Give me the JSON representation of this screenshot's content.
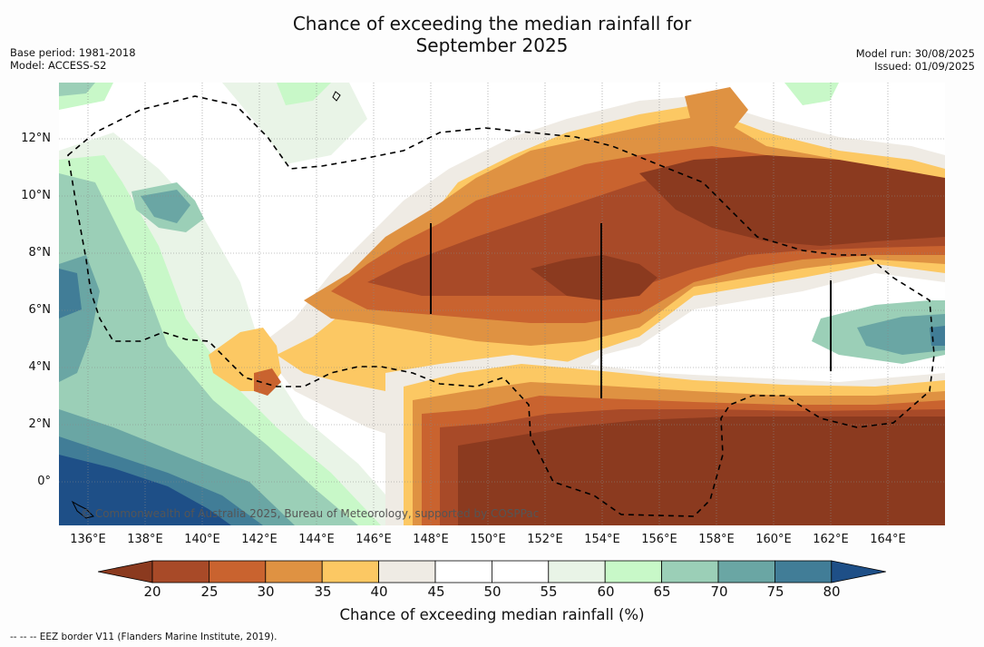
{
  "title_line1": "Chance of exceeding the median rainfall for",
  "title_line2": "September 2025",
  "meta_left": {
    "base_period": "Base period: 1981-2018",
    "model": "Model: ACCESS-S2"
  },
  "meta_right": {
    "model_run": "Model run: 30/08/2025",
    "issued": "Issued: 01/09/2025"
  },
  "map": {
    "lat_labels": [
      "12°N",
      "10°N",
      "8°N",
      "6°N",
      "4°N",
      "2°N",
      "0°"
    ],
    "lon_labels": [
      "136°E",
      "138°E",
      "140°E",
      "142°E",
      "144°E",
      "146°E",
      "148°E",
      "150°E",
      "152°E",
      "154°E",
      "156°E",
      "158°E",
      "160°E",
      "162°E",
      "164°E"
    ],
    "copyright": "© Commonwealth of Australia 2025, Bureau of Meteorology, supported by COSPPac",
    "legend_line": "EEZ border V11 (Flanders Marine Institute, 2019)."
  },
  "colorbar": {
    "ticks": [
      "20",
      "25",
      "30",
      "35",
      "40",
      "45",
      "50",
      "55",
      "60",
      "65",
      "70",
      "75",
      "80"
    ],
    "label": "Chance of exceeding median rainfall (%)",
    "colors": [
      "#8b3a1f",
      "#a84a28",
      "#c9632f",
      "#df9242",
      "#fcc863",
      "#efebe4",
      "#ffffff",
      "#ffffff",
      "#e9f4e7",
      "#c8f8c8",
      "#9bcfb7",
      "#6aa6a4",
      "#417d97",
      "#1e4f87"
    ]
  },
  "footnote": "--  --  -- EEZ border V11 (Flanders Marine Institute, 2019)."
}
